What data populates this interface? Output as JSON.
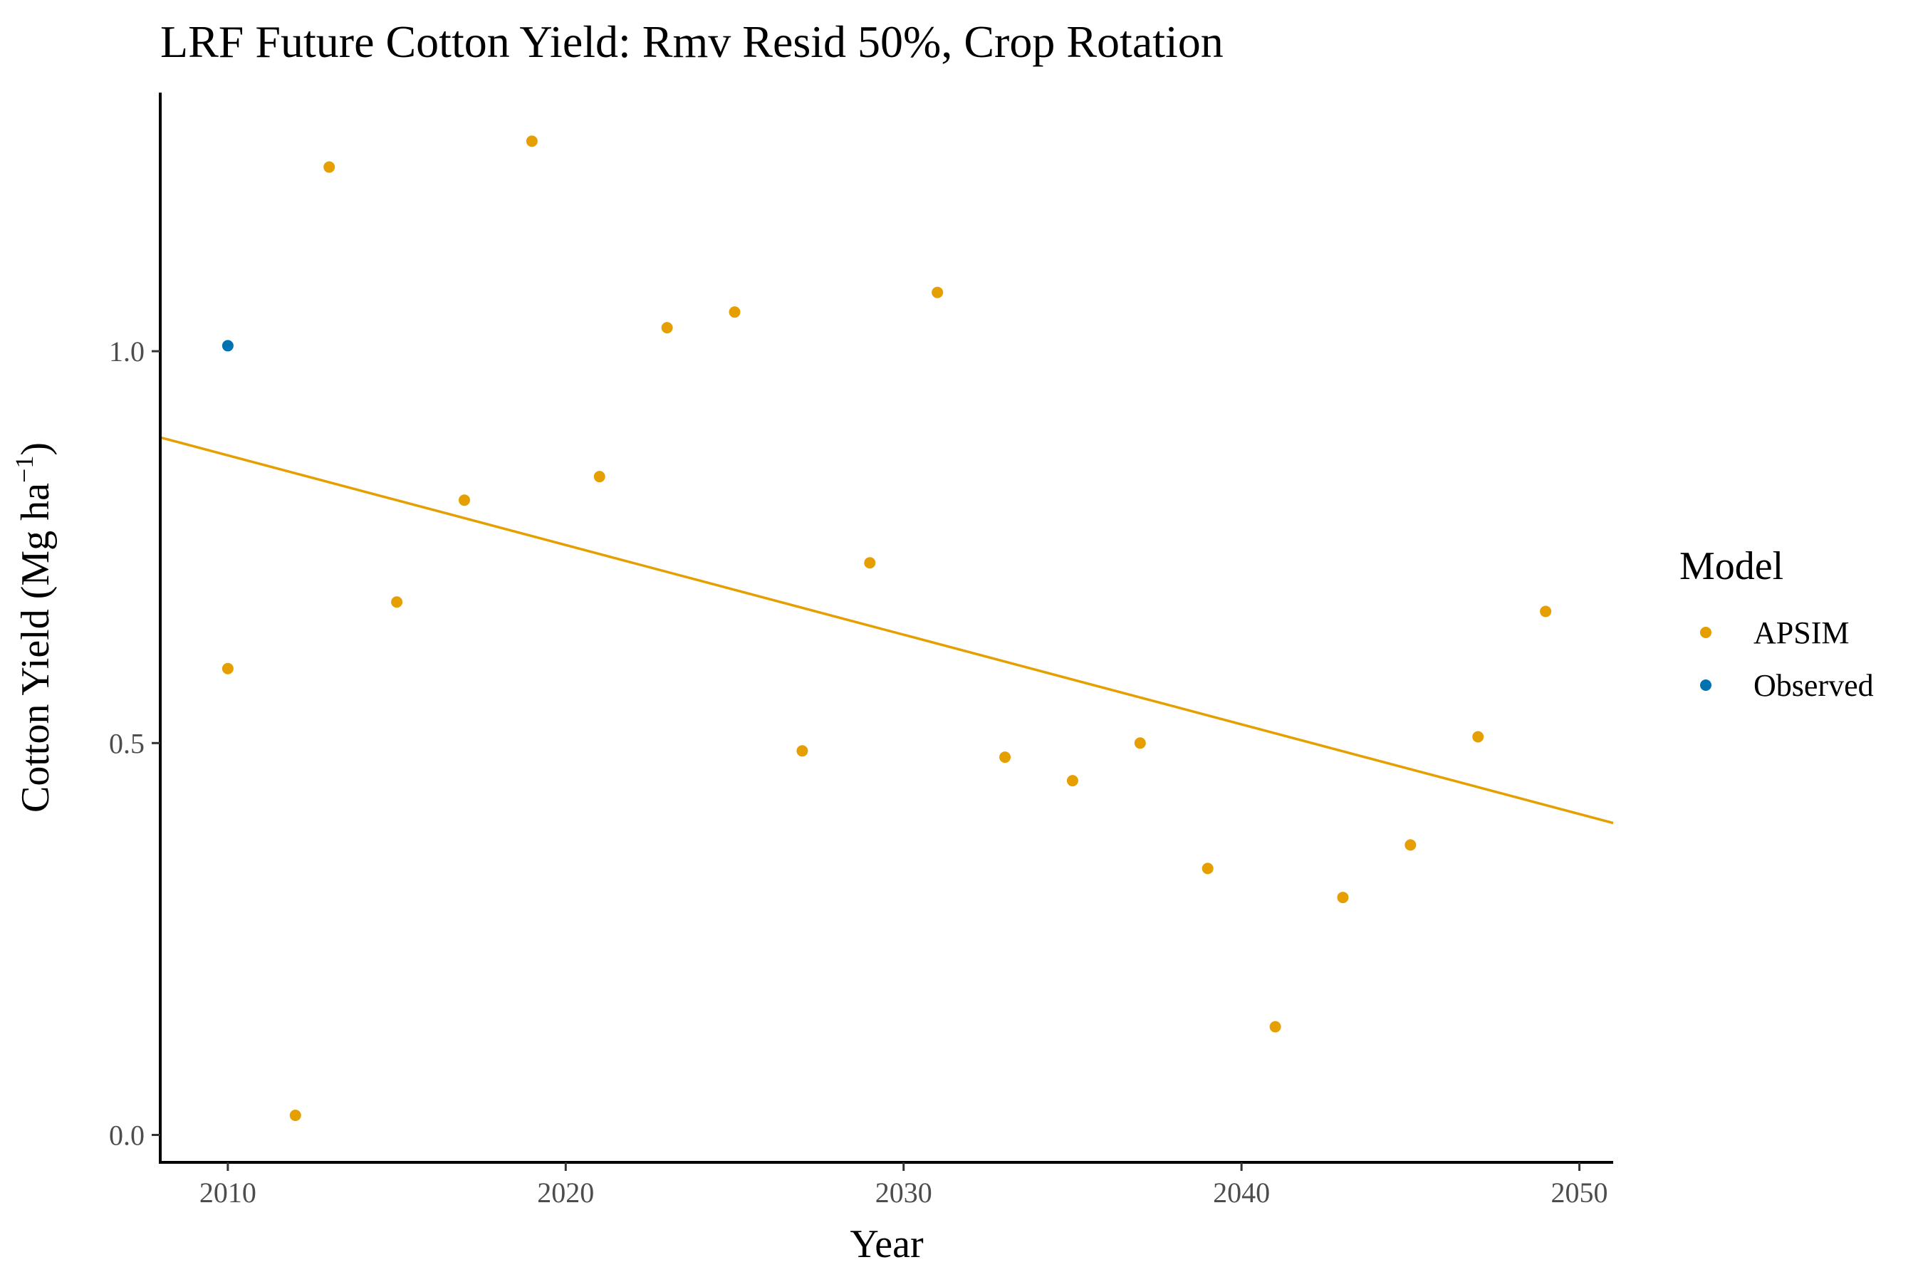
{
  "chart_data": {
    "type": "scatter",
    "title": "LRF Future Cotton Yield:  Rmv Resid 50%, Crop Rotation",
    "xlabel": "Year",
    "ylabel_main": "Cotton Yield (Mg ha",
    "ylabel_sup": "−1",
    "ylabel_close": ")",
    "xlim": [
      2008,
      2051
    ],
    "ylim": [
      -0.035,
      1.33
    ],
    "xticks": [
      2010,
      2020,
      2030,
      2040,
      2050
    ],
    "xtick_labels": [
      "2010",
      "2020",
      "2030",
      "2040",
      "2050"
    ],
    "yticks": [
      0.0,
      0.5,
      1.0
    ],
    "ytick_labels": [
      "0.0",
      "0.5",
      "1.0"
    ],
    "grid": false,
    "legend": {
      "title": "Model",
      "position": "right",
      "entries": [
        {
          "label": "APSIM",
          "color": "#E69F00"
        },
        {
          "label": "Observed",
          "color": "#0072B2"
        }
      ]
    },
    "series": [
      {
        "name": "APSIM",
        "color": "#E69F00",
        "points": [
          {
            "x": 2010,
            "y": 0.595
          },
          {
            "x": 2012,
            "y": 0.025
          },
          {
            "x": 2013,
            "y": 1.235
          },
          {
            "x": 2015,
            "y": 0.68
          },
          {
            "x": 2017,
            "y": 0.81
          },
          {
            "x": 2019,
            "y": 1.268
          },
          {
            "x": 2021,
            "y": 0.84
          },
          {
            "x": 2023,
            "y": 1.03
          },
          {
            "x": 2025,
            "y": 1.05
          },
          {
            "x": 2027,
            "y": 0.49
          },
          {
            "x": 2029,
            "y": 0.73
          },
          {
            "x": 2031,
            "y": 1.075
          },
          {
            "x": 2033,
            "y": 0.482
          },
          {
            "x": 2035,
            "y": 0.452
          },
          {
            "x": 2037,
            "y": 0.5
          },
          {
            "x": 2039,
            "y": 0.34
          },
          {
            "x": 2041,
            "y": 0.138
          },
          {
            "x": 2043,
            "y": 0.303
          },
          {
            "x": 2045,
            "y": 0.37
          },
          {
            "x": 2047,
            "y": 0.508
          },
          {
            "x": 2049,
            "y": 0.668
          }
        ]
      },
      {
        "name": "Observed",
        "color": "#0072B2",
        "points": [
          {
            "x": 2010,
            "y": 1.007
          }
        ]
      }
    ],
    "trend_line": {
      "color": "#E69F00",
      "x": [
        2008,
        2051
      ],
      "y": [
        0.89,
        0.398
      ]
    }
  }
}
